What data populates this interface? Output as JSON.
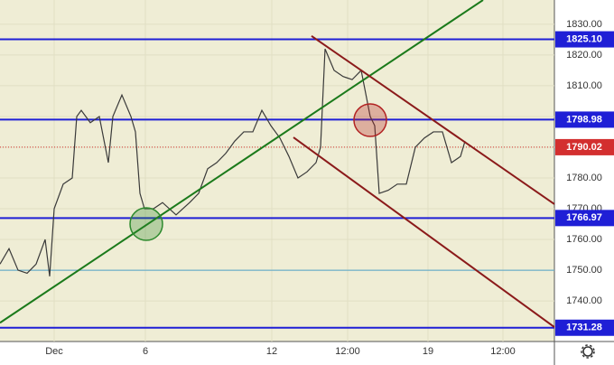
{
  "chart_data": {
    "type": "line",
    "xlim": [
      0,
      614
    ],
    "ylim": [
      1726.8,
      1837.9
    ],
    "xticks": [
      {
        "value": 60,
        "label": "Dec"
      },
      {
        "value": 161,
        "label": "6"
      },
      {
        "value": 301,
        "label": "12"
      },
      {
        "value": 385,
        "label": "12:00"
      },
      {
        "value": 474,
        "label": "19"
      },
      {
        "value": 557,
        "label": "12:00"
      }
    ],
    "yticks": [
      {
        "value": 1740,
        "label": "1740.00"
      },
      {
        "value": 1750,
        "label": "1750.00"
      },
      {
        "value": 1760,
        "label": "1760.00"
      },
      {
        "value": 1770,
        "label": "1770.00"
      },
      {
        "value": 1780,
        "label": "1780.00"
      },
      {
        "value": 1790,
        "label": "1790.00"
      },
      {
        "value": 1800,
        "label": "1800.00"
      },
      {
        "value": 1810,
        "label": "1810.00"
      },
      {
        "value": 1820,
        "label": "1820.00"
      },
      {
        "value": 1830,
        "label": "1830.00"
      }
    ],
    "grid": true,
    "series": [
      {
        "color": "#3a3a3a",
        "x": [
          0,
          10,
          20,
          30,
          40,
          50,
          55,
          60,
          70,
          80,
          85,
          90,
          100,
          110,
          120,
          125,
          135,
          145,
          150,
          155,
          160,
          170,
          180,
          195,
          210,
          220,
          230,
          240,
          250,
          260,
          270,
          280,
          290,
          300,
          310,
          320,
          330,
          340,
          350,
          355,
          360,
          370,
          380,
          390,
          400,
          410,
          415,
          420,
          430,
          440,
          450,
          460,
          470,
          480,
          490,
          500,
          510,
          515
        ],
        "values": [
          1752,
          1757,
          1750,
          1749,
          1752,
          1760,
          1748,
          1770,
          1778,
          1780,
          1800,
          1802,
          1798,
          1800,
          1785,
          1800,
          1807,
          1800,
          1795,
          1775,
          1770,
          1770,
          1772,
          1768,
          1772,
          1775,
          1783,
          1785,
          1788,
          1792,
          1795,
          1795,
          1802,
          1797,
          1793,
          1787,
          1780,
          1782,
          1785,
          1790,
          1822,
          1815,
          1813,
          1812,
          1815,
          1800,
          1797,
          1775,
          1776,
          1778,
          1778,
          1790,
          1793,
          1795,
          1795,
          1785,
          1787,
          1792
        ]
      }
    ],
    "levels": [
      {
        "value": 1825.1,
        "label": "1825.10",
        "color": "#1f1fd6"
      },
      {
        "value": 1798.98,
        "label": "1798.98",
        "color": "#1f1fd6"
      },
      {
        "value": 1766.97,
        "label": "1766.97",
        "color": "#1f1fd6"
      },
      {
        "value": 1731.28,
        "label": "1731.28",
        "color": "#1f1fd6"
      }
    ],
    "current_price": {
      "value": 1790.02,
      "label": "1790.02",
      "color": "#d32f2f"
    },
    "thin_level": {
      "value": 1750,
      "color": "#4fa3c8"
    },
    "trendlines": [
      {
        "x": [
          0,
          535
        ],
        "values": [
          1732.9,
          1837.9
        ],
        "color": "#1b7a1b"
      },
      {
        "x": [
          345,
          614
        ],
        "values": [
          1826.2,
          1771.5
        ],
        "color": "#8b1a1a"
      },
      {
        "x": [
          325,
          614
        ],
        "values": [
          1793.2,
          1731.5
        ],
        "color": "#8b1a1a"
      }
    ],
    "circles": [
      {
        "x": 162,
        "value": 1765,
        "color": "#2e8b2e"
      },
      {
        "x": 410,
        "value": 1798.8,
        "color": "#b22222"
      }
    ]
  }
}
